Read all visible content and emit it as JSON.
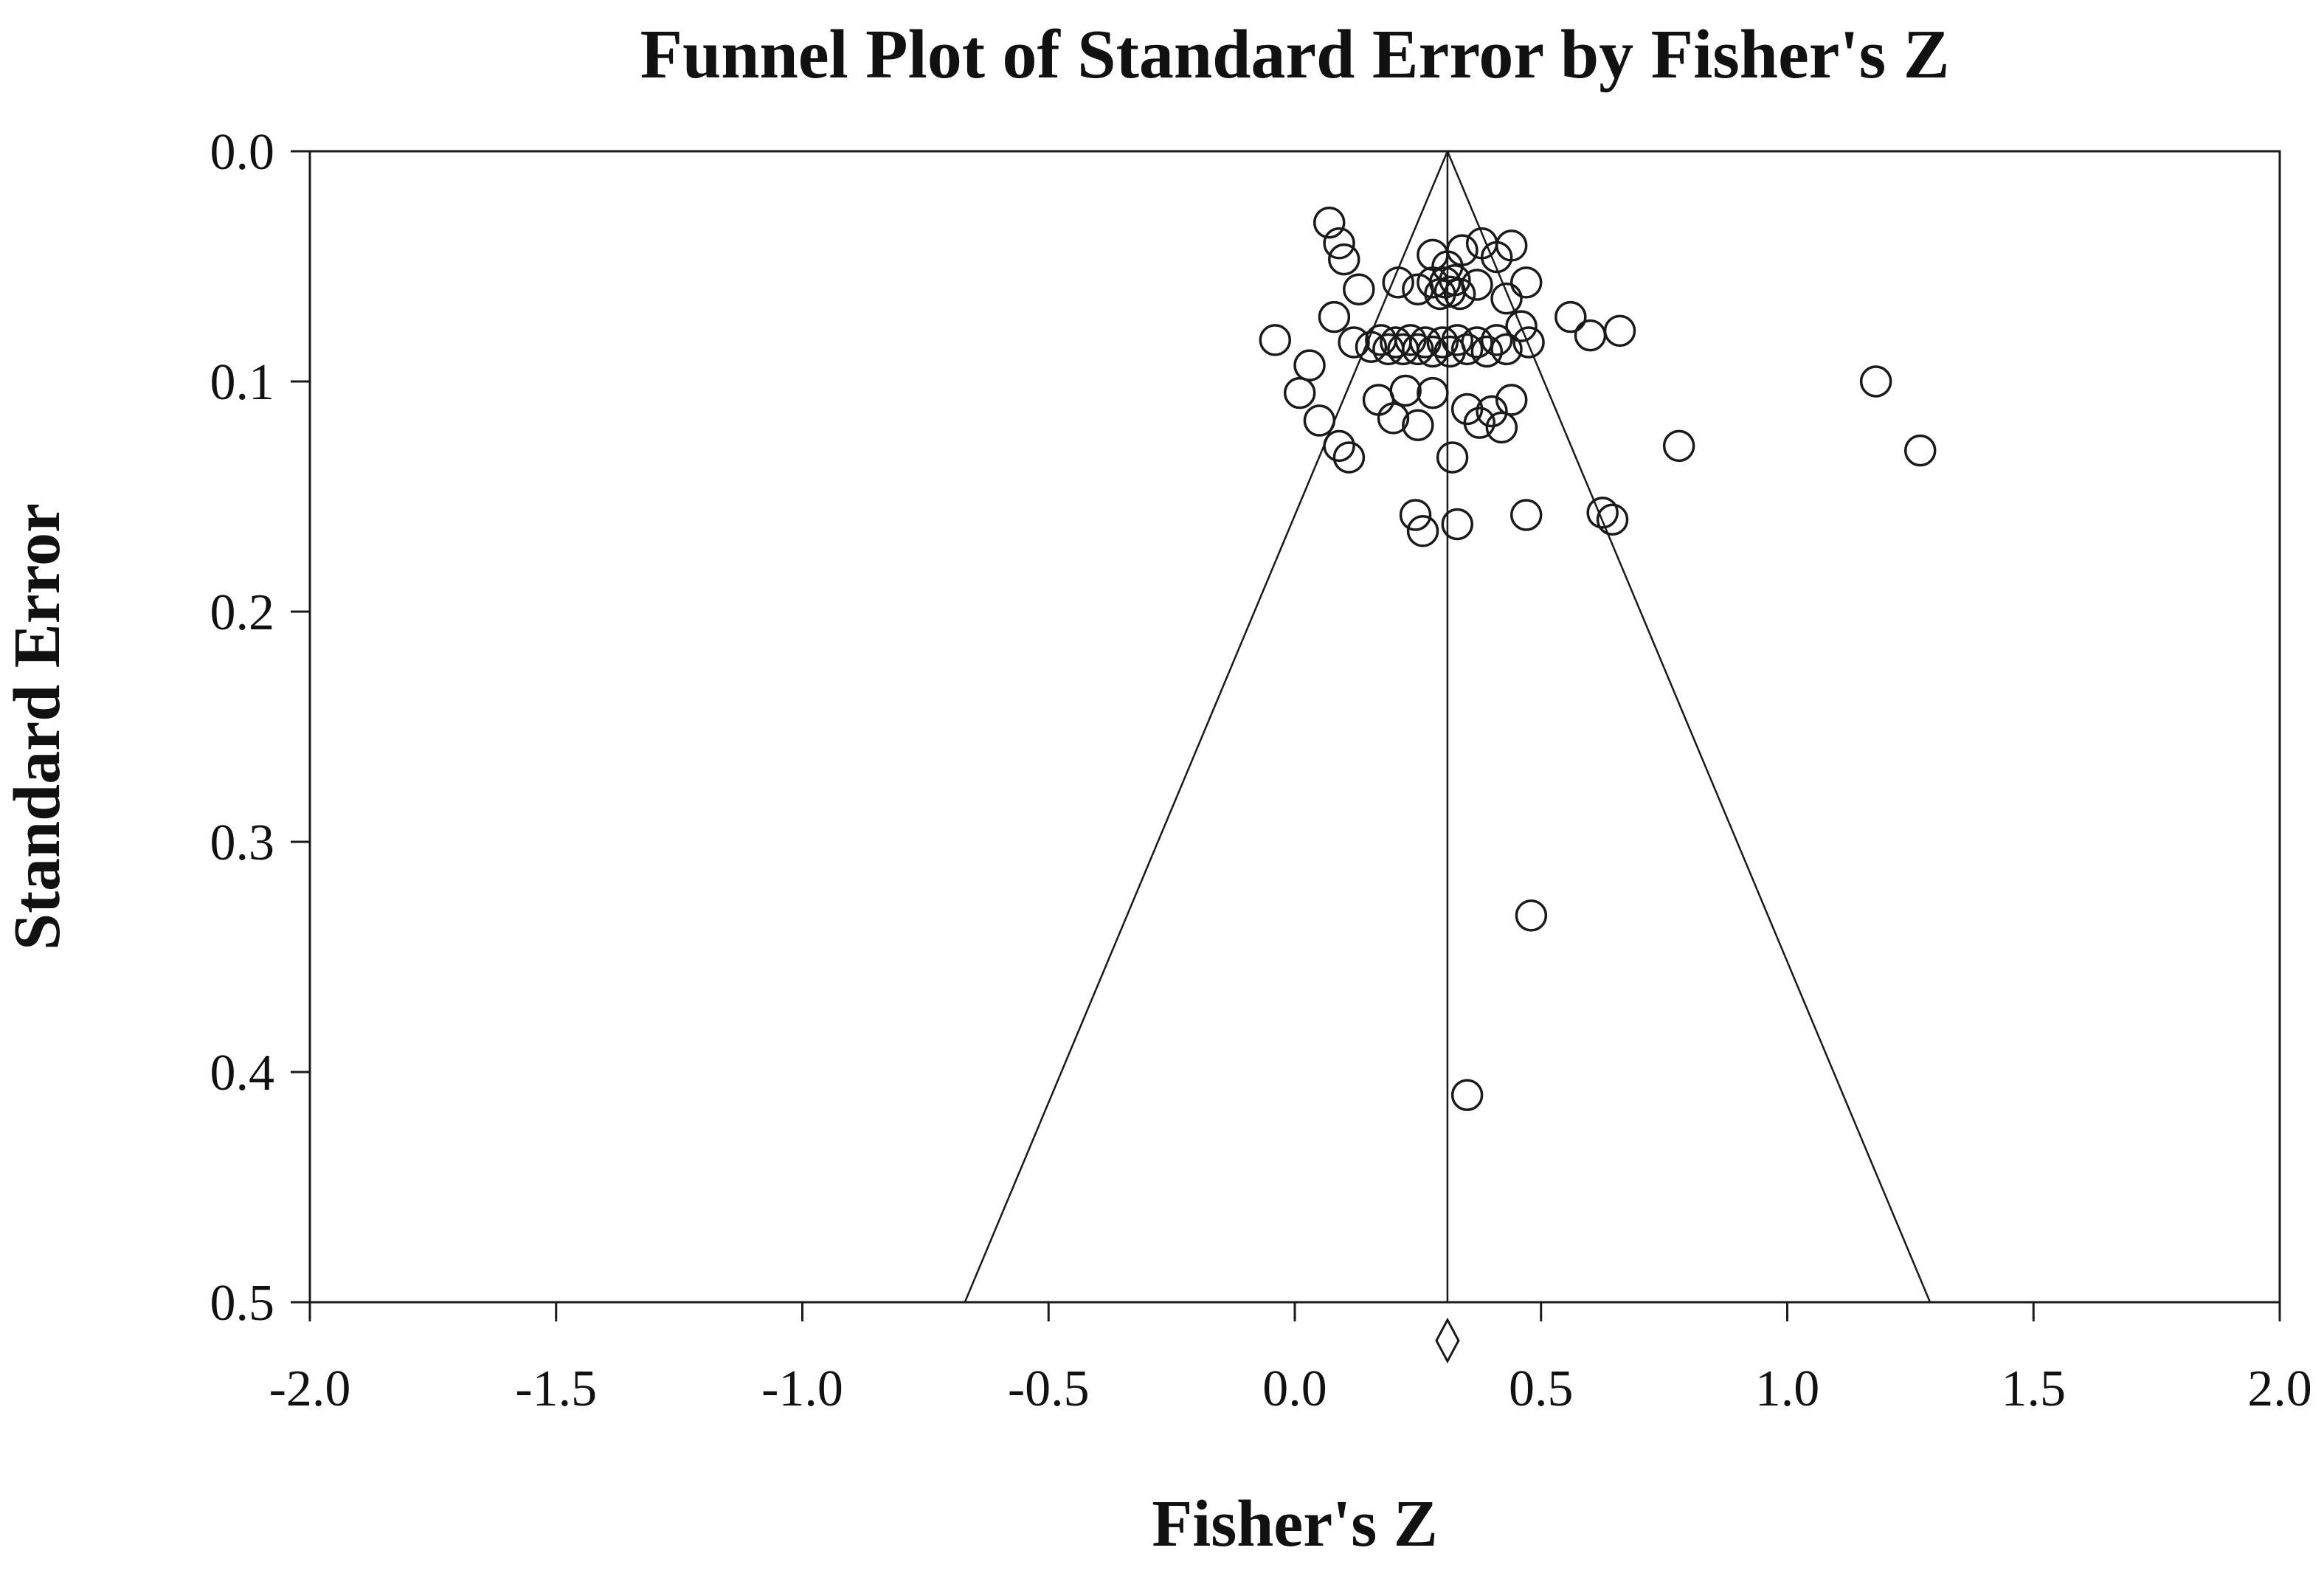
{
  "chart_data": {
    "type": "scatter",
    "title": "Funnel Plot of Standard Error by Fisher's Z",
    "xlabel": "Fisher's Z",
    "ylabel": "Standard Error",
    "xlim": [
      -2.0,
      2.0
    ],
    "ylim": [
      0.0,
      0.5
    ],
    "y_inverted": true,
    "grid": false,
    "legend": "none",
    "x_ticks": [
      -2.0,
      -1.5,
      -1.0,
      -0.5,
      0.0,
      0.5,
      1.0,
      1.5,
      2.0
    ],
    "x_tick_labels": [
      "-2.0",
      "-1.5",
      "-1.0",
      "-0.5",
      "0.0",
      "0.5",
      "1.0",
      "1.5",
      "2.0"
    ],
    "y_ticks": [
      0.0,
      0.1,
      0.2,
      0.3,
      0.4,
      0.5
    ],
    "y_tick_labels": [
      "0.0",
      "0.1",
      "0.2",
      "0.3",
      "0.4",
      "0.5"
    ],
    "marker": "open-circle",
    "style": {
      "stroke": "#1a1a1a",
      "background": "#ffffff"
    },
    "funnel": {
      "apex_x": 0.31,
      "apex_se": 0.0,
      "base_se": 0.5,
      "left_base_x": -0.67,
      "right_base_x": 1.29,
      "center_line_x": 0.31
    },
    "diamond": {
      "x": 0.31,
      "position": "below-x-axis"
    },
    "points": [
      [
        0.07,
        0.031
      ],
      [
        0.09,
        0.04
      ],
      [
        0.1,
        0.047
      ],
      [
        0.28,
        0.045
      ],
      [
        0.31,
        0.05
      ],
      [
        0.34,
        0.043
      ],
      [
        0.38,
        0.04
      ],
      [
        0.41,
        0.046
      ],
      [
        0.44,
        0.041
      ],
      [
        0.13,
        0.06
      ],
      [
        0.21,
        0.057
      ],
      [
        0.25,
        0.06
      ],
      [
        0.28,
        0.057
      ],
      [
        0.295,
        0.062
      ],
      [
        0.305,
        0.057
      ],
      [
        0.315,
        0.061
      ],
      [
        0.325,
        0.056
      ],
      [
        0.335,
        0.062
      ],
      [
        0.37,
        0.058
      ],
      [
        0.43,
        0.064
      ],
      [
        0.47,
        0.057
      ],
      [
        -0.04,
        0.082
      ],
      [
        0.03,
        0.093
      ],
      [
        0.08,
        0.072
      ],
      [
        0.12,
        0.083
      ],
      [
        0.155,
        0.085
      ],
      [
        0.175,
        0.082
      ],
      [
        0.19,
        0.086
      ],
      [
        0.205,
        0.083
      ],
      [
        0.22,
        0.086
      ],
      [
        0.235,
        0.082
      ],
      [
        0.25,
        0.086
      ],
      [
        0.265,
        0.083
      ],
      [
        0.28,
        0.087
      ],
      [
        0.3,
        0.083
      ],
      [
        0.315,
        0.087
      ],
      [
        0.33,
        0.082
      ],
      [
        0.35,
        0.086
      ],
      [
        0.37,
        0.083
      ],
      [
        0.39,
        0.087
      ],
      [
        0.41,
        0.082
      ],
      [
        0.43,
        0.086
      ],
      [
        0.46,
        0.076
      ],
      [
        0.475,
        0.083
      ],
      [
        0.56,
        0.072
      ],
      [
        0.6,
        0.08
      ],
      [
        0.66,
        0.078
      ],
      [
        0.01,
        0.105
      ],
      [
        0.05,
        0.117
      ],
      [
        0.09,
        0.128
      ],
      [
        0.11,
        0.133
      ],
      [
        0.17,
        0.108
      ],
      [
        0.2,
        0.116
      ],
      [
        0.225,
        0.104
      ],
      [
        0.25,
        0.119
      ],
      [
        0.28,
        0.105
      ],
      [
        0.32,
        0.133
      ],
      [
        0.35,
        0.112
      ],
      [
        0.375,
        0.118
      ],
      [
        0.4,
        0.113
      ],
      [
        0.42,
        0.12
      ],
      [
        0.44,
        0.108
      ],
      [
        0.78,
        0.128
      ],
      [
        1.18,
        0.1
      ],
      [
        1.27,
        0.13
      ],
      [
        0.245,
        0.158
      ],
      [
        0.26,
        0.165
      ],
      [
        0.33,
        0.162
      ],
      [
        0.47,
        0.158
      ],
      [
        0.625,
        0.157
      ],
      [
        0.645,
        0.16
      ],
      [
        0.48,
        0.332
      ],
      [
        0.35,
        0.41
      ]
    ]
  }
}
